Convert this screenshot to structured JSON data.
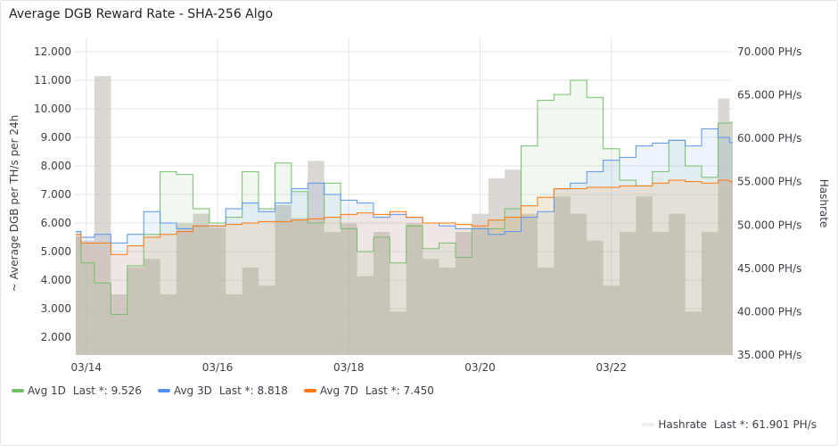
{
  "panel": {
    "title": "Average DGB Reward Rate - SHA-256 Algo"
  },
  "chart_data": {
    "type": "line",
    "title": "Average DGB Reward Rate - SHA-256 Algo",
    "ylabel": "~ Average DGB per TH/s per 24h",
    "y2label": "Hashrate",
    "ylim": [
      1.375,
      12.5
    ],
    "y2lim": [
      35000,
      71650
    ],
    "xlim_days": [
      -0.16,
      9.85
    ],
    "grid": true,
    "legend_placement": "bottom",
    "x_ticks": [
      {
        "day": 0,
        "label": "03/14"
      },
      {
        "day": 2,
        "label": "03/16"
      },
      {
        "day": 4,
        "label": "03/18"
      },
      {
        "day": 6,
        "label": "03/20"
      },
      {
        "day": 8,
        "label": "03/22"
      }
    ],
    "y_ticks": [
      {
        "v": 2,
        "label": "2.000"
      },
      {
        "v": 3,
        "label": "3.000"
      },
      {
        "v": 4,
        "label": "4.000"
      },
      {
        "v": 5,
        "label": "5.000"
      },
      {
        "v": 6,
        "label": "6.000"
      },
      {
        "v": 7,
        "label": "7.000"
      },
      {
        "v": 8,
        "label": "8.000"
      },
      {
        "v": 9,
        "label": "9.000"
      },
      {
        "v": 10,
        "label": "10.000"
      },
      {
        "v": 11,
        "label": "11.000"
      },
      {
        "v": 12,
        "label": "12.000"
      }
    ],
    "y2_ticks": [
      {
        "v": 35000,
        "label": "35.000 PH/s"
      },
      {
        "v": 40000,
        "label": "40.000 PH/s"
      },
      {
        "v": 45000,
        "label": "45.000 PH/s"
      },
      {
        "v": 50000,
        "label": "50.000 PH/s"
      },
      {
        "v": 55000,
        "label": "55.000 PH/s"
      },
      {
        "v": 60000,
        "label": "60.000 PH/s"
      },
      {
        "v": 65000,
        "label": "65.000 PH/s"
      },
      {
        "v": 70000,
        "label": "70.000 PH/s"
      }
    ],
    "x_days": [
      -0.16,
      0,
      0.25,
      0.5,
      0.75,
      1,
      1.25,
      1.5,
      1.75,
      2,
      2.25,
      2.5,
      2.75,
      3,
      3.25,
      3.5,
      3.75,
      4,
      4.25,
      4.5,
      4.75,
      5,
      5.25,
      5.5,
      5.75,
      6,
      6.25,
      6.5,
      6.75,
      7,
      7.25,
      7.5,
      7.75,
      8,
      8.25,
      8.5,
      8.75,
      9,
      9.25,
      9.5,
      9.75,
      9.85
    ],
    "series": [
      {
        "name": "Hashrate",
        "axis": "right",
        "color": "#d9d9d9",
        "legend": "Hashrate",
        "last": "Last *: 61.901 PH/s",
        "values": [
          48700,
          48200,
          67200,
          42000,
          45100,
          46100,
          42000,
          50200,
          51300,
          49700,
          42000,
          45100,
          43000,
          52300,
          50800,
          57400,
          49200,
          50200,
          44100,
          49200,
          40000,
          50200,
          46100,
          45100,
          49200,
          51300,
          55400,
          56400,
          51300,
          45100,
          53300,
          51300,
          48200,
          43000,
          49200,
          53300,
          49200,
          51300,
          40000,
          49200,
          64600,
          61901
        ]
      },
      {
        "name": "Avg 1D",
        "axis": "left",
        "color": "#73bf69",
        "legend": "Avg 1D",
        "last": "Last *: 9.526",
        "values": [
          5.7,
          4.6,
          3.9,
          2.8,
          4.5,
          5.6,
          7.8,
          7.7,
          6.5,
          6.0,
          6.2,
          7.8,
          6.5,
          8.1,
          7.1,
          6.0,
          7.4,
          5.8,
          5.0,
          5.5,
          4.6,
          5.9,
          5.1,
          5.3,
          4.8,
          5.8,
          5.8,
          6.5,
          8.7,
          10.3,
          10.5,
          11.0,
          10.4,
          8.6,
          7.5,
          7.3,
          7.8,
          8.9,
          8.0,
          7.6,
          9.5,
          9.526
        ]
      },
      {
        "name": "Avg 3D",
        "axis": "left",
        "color": "#5794f2",
        "legend": "Avg 3D",
        "last": "Last *: 8.818",
        "values": [
          5.7,
          5.5,
          5.6,
          5.3,
          5.6,
          6.4,
          6.0,
          5.8,
          5.9,
          5.9,
          6.5,
          6.7,
          6.4,
          6.7,
          7.2,
          7.4,
          7.0,
          6.8,
          6.7,
          6.2,
          6.3,
          6.2,
          6.0,
          5.9,
          5.8,
          5.8,
          5.6,
          5.7,
          6.2,
          6.4,
          7.2,
          7.4,
          7.8,
          8.2,
          8.3,
          8.7,
          8.8,
          8.9,
          8.7,
          9.3,
          9.0,
          8.818
        ]
      },
      {
        "name": "Avg 7D",
        "axis": "left",
        "color": "#ff780a",
        "legend": "Avg 7D",
        "last": "Last *: 7.450",
        "values": [
          5.6,
          5.3,
          5.3,
          4.9,
          5.2,
          5.5,
          5.6,
          5.7,
          5.9,
          5.9,
          5.95,
          6.0,
          6.05,
          6.05,
          6.1,
          6.15,
          6.2,
          6.3,
          6.35,
          6.3,
          6.4,
          6.2,
          6.0,
          6.0,
          5.95,
          5.9,
          6.1,
          6.2,
          6.6,
          6.9,
          7.2,
          7.2,
          7.25,
          7.25,
          7.3,
          7.3,
          7.4,
          7.5,
          7.45,
          7.4,
          7.5,
          7.45
        ]
      }
    ]
  }
}
